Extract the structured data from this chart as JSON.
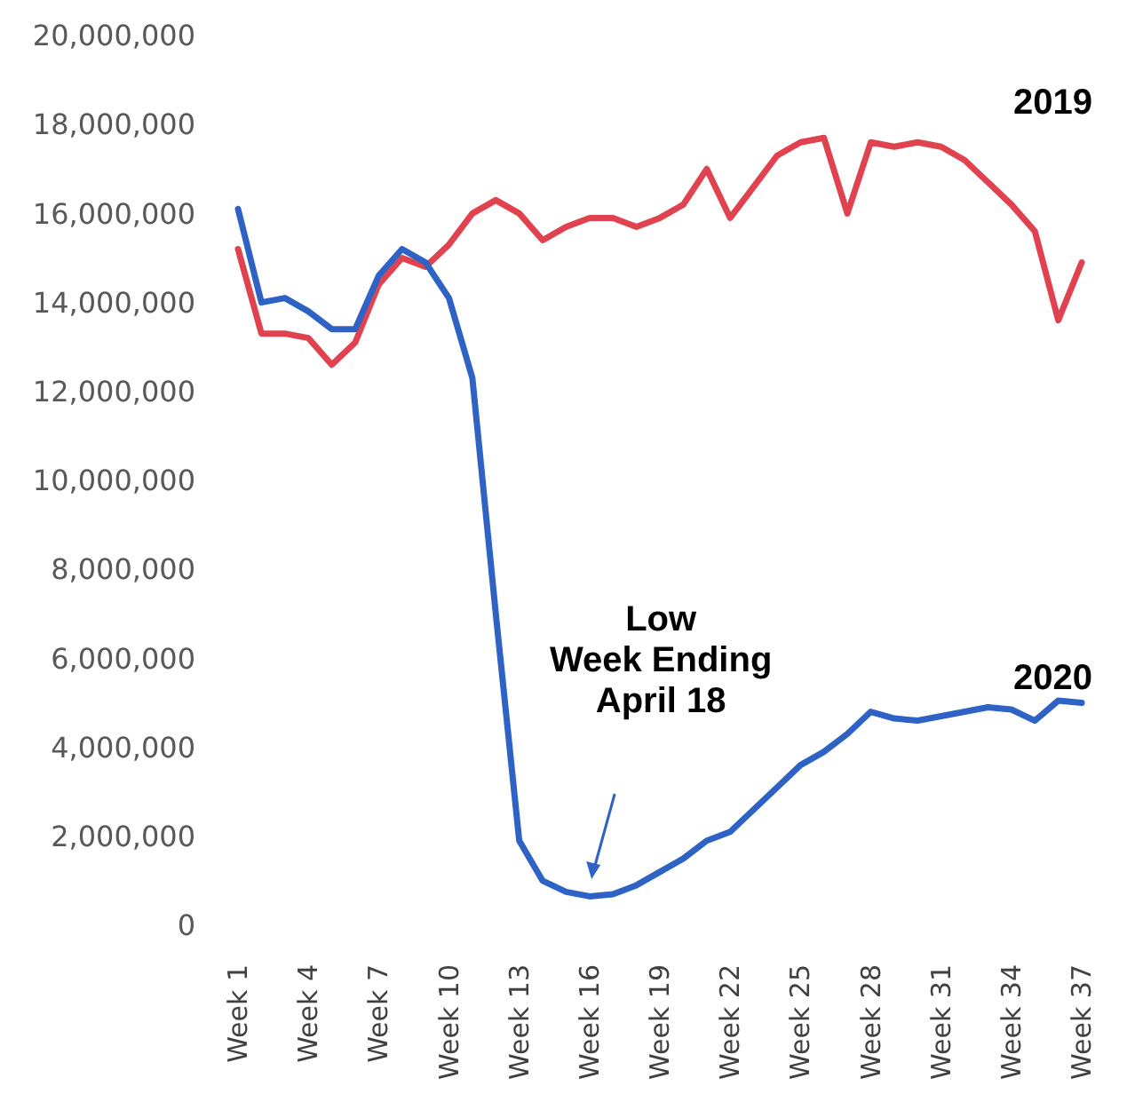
{
  "chart_data": {
    "type": "line",
    "categories": [
      "Week 1",
      null,
      null,
      "Week 4",
      null,
      null,
      "Week 7",
      null,
      null,
      "Week 10",
      null,
      null,
      "Week 13",
      null,
      null,
      "Week 16",
      null,
      null,
      "Week 19",
      null,
      null,
      "Week 22",
      null,
      null,
      "Week 25",
      null,
      null,
      "Week 28",
      null,
      null,
      "Week 31",
      null,
      null,
      "Week 34",
      null,
      null,
      "Week 37"
    ],
    "series": [
      {
        "name": "2019",
        "color": "#e0434f",
        "values": [
          15200000,
          13300000,
          13300000,
          13200000,
          12600000,
          13100000,
          14400000,
          15000000,
          14800000,
          15300000,
          16000000,
          16300000,
          16000000,
          15400000,
          15700000,
          15900000,
          15900000,
          15700000,
          15900000,
          16200000,
          17000000,
          15900000,
          16600000,
          17300000,
          17600000,
          17700000,
          16000000,
          17600000,
          17500000,
          17600000,
          17500000,
          17200000,
          16700000,
          16200000,
          15600000,
          13600000,
          14900000
        ]
      },
      {
        "name": "2020",
        "color": "#2e62c4",
        "values": [
          16100000,
          14000000,
          14100000,
          13800000,
          13400000,
          13400000,
          14600000,
          15200000,
          14900000,
          14100000,
          12300000,
          7000000,
          1900000,
          1000000,
          750000,
          650000,
          700000,
          900000,
          1200000,
          1500000,
          1900000,
          2100000,
          2600000,
          3100000,
          3600000,
          3900000,
          4300000,
          4800000,
          4650000,
          4600000,
          4700000,
          4800000,
          4900000,
          4850000,
          4600000,
          5050000,
          5000000
        ]
      }
    ],
    "ylim": [
      0,
      20000000
    ],
    "yticks": [
      {
        "value": 0,
        "label": "0"
      },
      {
        "value": 2000000,
        "label": "2,000,000"
      },
      {
        "value": 4000000,
        "label": "4,000,000"
      },
      {
        "value": 6000000,
        "label": "6,000,000"
      },
      {
        "value": 8000000,
        "label": "8,000,000"
      },
      {
        "value": 10000000,
        "label": "10,000,000"
      },
      {
        "value": 12000000,
        "label": "12,000,000"
      },
      {
        "value": 14000000,
        "label": "14,000,000"
      },
      {
        "value": 16000000,
        "label": "16,000,000"
      },
      {
        "value": 18000000,
        "label": "18,000,000"
      },
      {
        "value": 20000000,
        "label": "20,000,000"
      }
    ],
    "grid": false,
    "legend": false,
    "marker": "none",
    "line_style": "solid",
    "annotations": [
      "Low\nWeek Ending\nApril 18"
    ]
  }
}
